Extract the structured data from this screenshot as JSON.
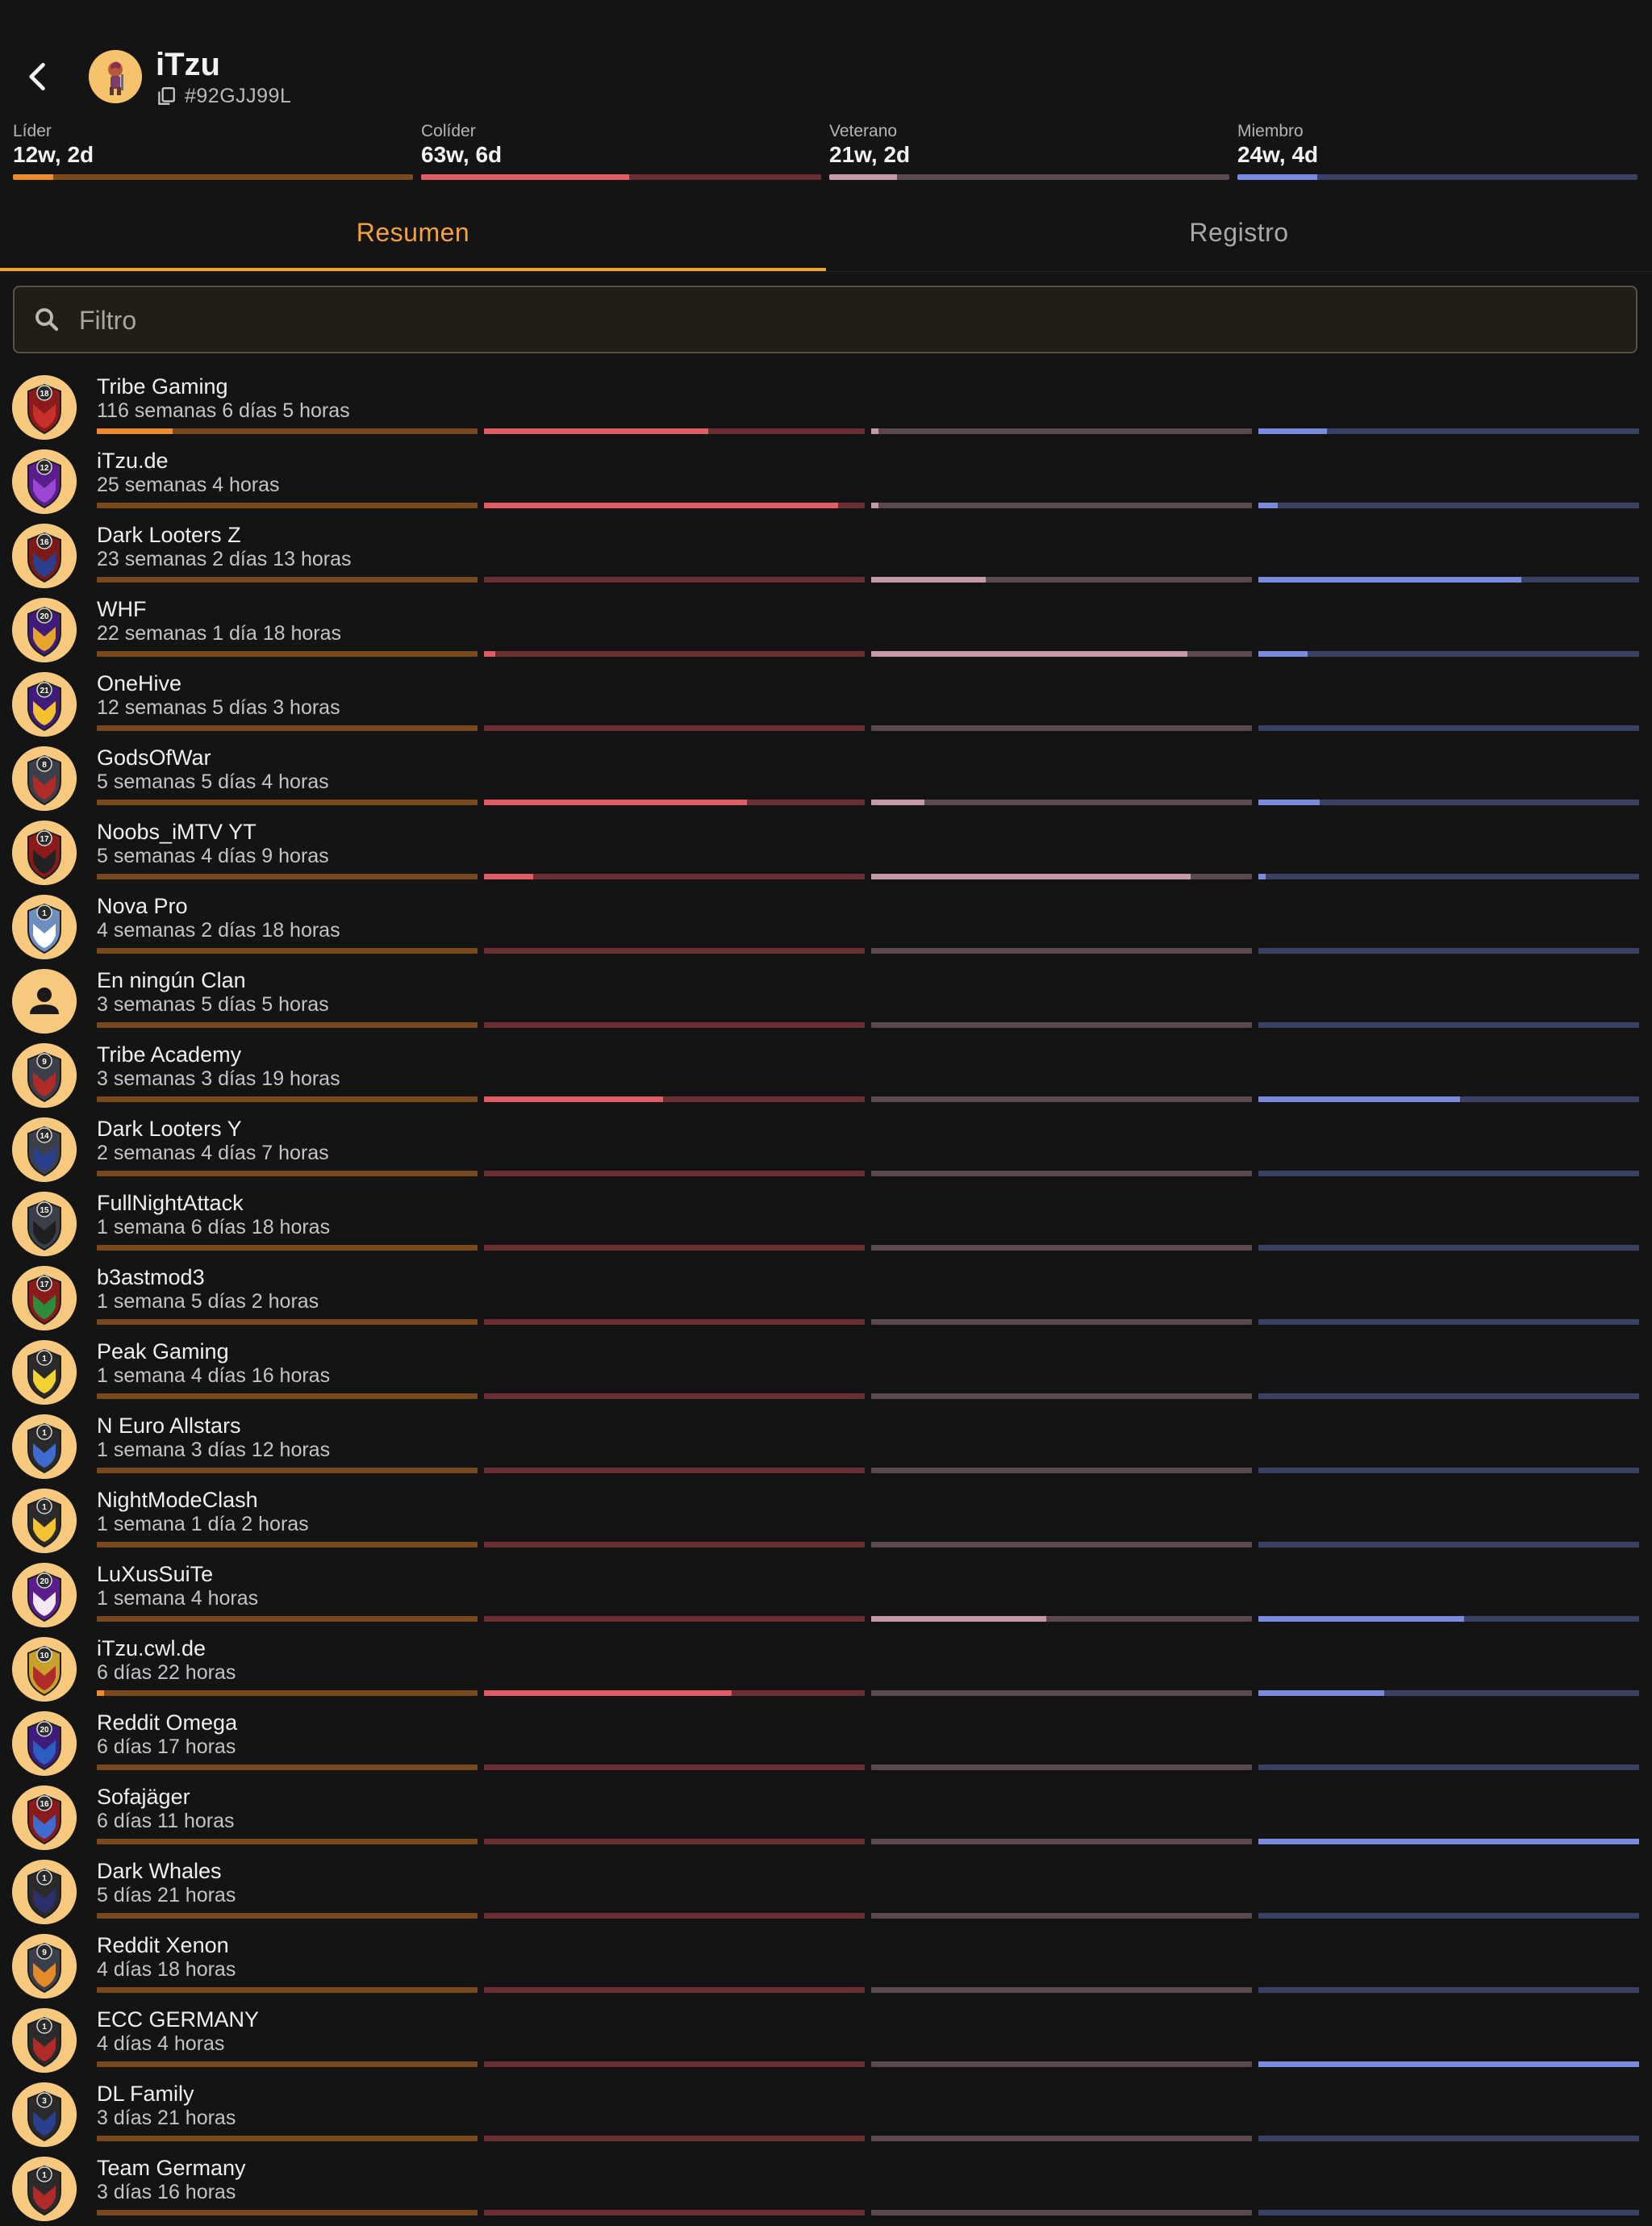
{
  "header": {
    "player_name": "iTzu",
    "player_tag": "#92GJJ99L"
  },
  "role_colors": {
    "leader": {
      "track": "#7A4A1C",
      "fill": "#F08A2E"
    },
    "coleader": {
      "track": "#6B2F33",
      "fill": "#E25C64"
    },
    "elder": {
      "track": "#5A4A50",
      "fill": "#C79AA8"
    },
    "member": {
      "track": "#3B4066",
      "fill": "#7A8BE0"
    }
  },
  "roles": [
    {
      "key": "leader",
      "label": "Líder",
      "value": "12w, 2d",
      "fraction": 0.1
    },
    {
      "key": "coleader",
      "label": "Colíder",
      "value": "63w, 6d",
      "fraction": 0.52
    },
    {
      "key": "elder",
      "label": "Veterano",
      "value": "21w, 2d",
      "fraction": 0.17
    },
    {
      "key": "member",
      "label": "Miembro",
      "value": "24w, 4d",
      "fraction": 0.2
    }
  ],
  "tabs": [
    {
      "label": "Resumen",
      "active": true
    },
    {
      "label": "Registro",
      "active": false
    }
  ],
  "filter": {
    "placeholder": "Filtro"
  },
  "clans": [
    {
      "name": "Tribe Gaming",
      "duration": "116 semanas 6 días 5 horas",
      "badge_level": "18",
      "badge_colors": [
        "#8B1A1A",
        "#C9302C"
      ],
      "roles": [
        0.2,
        0.59,
        0.02,
        0.18
      ]
    },
    {
      "name": "iTzu.de",
      "duration": "25 semanas 4 horas",
      "badge_level": "12",
      "badge_colors": [
        "#5A1E8C",
        "#9B47D1"
      ],
      "roles": [
        0,
        0.93,
        0.02,
        0.05
      ]
    },
    {
      "name": "Dark Looters Z",
      "duration": "23 semanas 2 días 13 horas",
      "badge_level": "16",
      "badge_colors": [
        "#7A1A1A",
        "#2B3F8F"
      ],
      "roles": [
        0,
        0,
        0.3,
        0.69
      ]
    },
    {
      "name": "WHF",
      "duration": "22 semanas 1 día 18 horas",
      "badge_level": "20",
      "badge_colors": [
        "#3F1C7A",
        "#E5A42B"
      ],
      "roles": [
        0,
        0.03,
        0.83,
        0.13
      ]
    },
    {
      "name": "OneHive",
      "duration": "12 semanas 5 días 3 horas",
      "badge_level": "21",
      "badge_colors": [
        "#3F1C7A",
        "#F2C230"
      ],
      "roles": [
        0,
        0,
        0,
        0
      ]
    },
    {
      "name": "GodsOfWar",
      "duration": "5 semanas 5 días 4 horas",
      "badge_level": "8",
      "badge_colors": [
        "#3A3F4A",
        "#B02A2A"
      ],
      "roles": [
        0,
        0.69,
        0.14,
        0.16
      ]
    },
    {
      "name": "Noobs_iMTV YT",
      "duration": "5 semanas 4 días 9 horas",
      "badge_level": "17",
      "badge_colors": [
        "#8B1A1A",
        "#222222"
      ],
      "roles": [
        0,
        0.13,
        0.84,
        0.02
      ]
    },
    {
      "name": "Nova Pro",
      "duration": "4 semanas 2 días 18 horas",
      "badge_level": "1",
      "badge_colors": [
        "#6C8FBF",
        "#FFFFFF"
      ],
      "roles": [
        0,
        0,
        0,
        0
      ]
    },
    {
      "name": "En ningún Clan",
      "duration": "3 semanas 5 días 5 horas",
      "badge_level": "",
      "badge_colors": [
        "#F7C97E",
        "#1A1A1A"
      ],
      "roles": [
        0,
        0,
        0,
        0
      ]
    },
    {
      "name": "Tribe Academy",
      "duration": "3 semanas 3 días 19 horas",
      "badge_level": "9",
      "badge_colors": [
        "#3A3F4A",
        "#B02A2A"
      ],
      "roles": [
        0,
        0.47,
        0,
        0.53
      ]
    },
    {
      "name": "Dark Looters Y",
      "duration": "2 semanas 4 días 7 horas",
      "badge_level": "14",
      "badge_colors": [
        "#3A3F4A",
        "#2B3F8F"
      ],
      "roles": [
        0,
        0,
        0,
        0
      ]
    },
    {
      "name": "FullNightAttack",
      "duration": "1 semana 6 días 18 horas",
      "badge_level": "15",
      "badge_colors": [
        "#3A3F4A",
        "#1F1F1F"
      ],
      "roles": [
        0,
        0,
        0,
        0
      ]
    },
    {
      "name": "b3astmod3",
      "duration": "1 semana 5 días 2 horas",
      "badge_level": "17",
      "badge_colors": [
        "#8B1A1A",
        "#2E8B3E"
      ],
      "roles": [
        0,
        0,
        0,
        0
      ]
    },
    {
      "name": "Peak Gaming",
      "duration": "1 semana 4 días 16 horas",
      "badge_level": "1",
      "badge_colors": [
        "#2A2A2A",
        "#F2D230"
      ],
      "roles": [
        0,
        0,
        0,
        0
      ]
    },
    {
      "name": "N Euro Allstars",
      "duration": "1 semana 3 días 12 horas",
      "badge_level": "1",
      "badge_colors": [
        "#2A2A2A",
        "#3F6BD1"
      ],
      "roles": [
        0,
        0,
        0,
        0
      ]
    },
    {
      "name": "NightModeClash",
      "duration": "1 semana 1 día 2 horas",
      "badge_level": "1",
      "badge_colors": [
        "#2A2A2A",
        "#F2C230"
      ],
      "roles": [
        0,
        0,
        0,
        0
      ]
    },
    {
      "name": "LuXusSuiTe",
      "duration": "1 semana 4 horas",
      "badge_level": "20",
      "badge_colors": [
        "#5A1E8C",
        "#F2E8F2"
      ],
      "roles": [
        0,
        0,
        0.46,
        0.54
      ]
    },
    {
      "name": "iTzu.cwl.de",
      "duration": "6 días 22 horas",
      "badge_level": "10",
      "badge_colors": [
        "#C9A02A",
        "#B02A2A"
      ],
      "roles": [
        0.02,
        0.65,
        0,
        0.33
      ]
    },
    {
      "name": "Reddit Omega",
      "duration": "6 días 17 horas",
      "badge_level": "20",
      "badge_colors": [
        "#3F1C7A",
        "#2B5FBF"
      ],
      "roles": [
        0,
        0,
        0,
        0
      ]
    },
    {
      "name": "Sofajäger",
      "duration": "6 días 11 horas",
      "badge_level": "16",
      "badge_colors": [
        "#8B1A1A",
        "#3F6BD1"
      ],
      "roles": [
        0,
        0,
        0,
        1.0
      ]
    },
    {
      "name": "Dark Whales",
      "duration": "5 días 21 horas",
      "badge_level": "1",
      "badge_colors": [
        "#2A2A2A",
        "#2B2F6B"
      ],
      "roles": [
        0,
        0,
        0,
        0
      ]
    },
    {
      "name": "Reddit Xenon",
      "duration": "4 días 18 horas",
      "badge_level": "9",
      "badge_colors": [
        "#3A3F4A",
        "#E58A2B"
      ],
      "roles": [
        0,
        0,
        0,
        0
      ]
    },
    {
      "name": "ECC GERMANY",
      "duration": "4 días 4 horas",
      "badge_level": "1",
      "badge_colors": [
        "#2A2A2A",
        "#B02A2A"
      ],
      "roles": [
        0,
        0,
        0,
        1.0
      ]
    },
    {
      "name": "DL Family",
      "duration": "3 días 21 horas",
      "badge_level": "3",
      "badge_colors": [
        "#2A2A2A",
        "#2B3F8F"
      ],
      "roles": [
        0,
        0,
        0,
        0
      ]
    },
    {
      "name": "Team Germany",
      "duration": "3 días 16 horas",
      "badge_level": "1",
      "badge_colors": [
        "#2A2A2A",
        "#B02A2A"
      ],
      "roles": [
        0,
        0,
        0,
        0
      ]
    }
  ]
}
